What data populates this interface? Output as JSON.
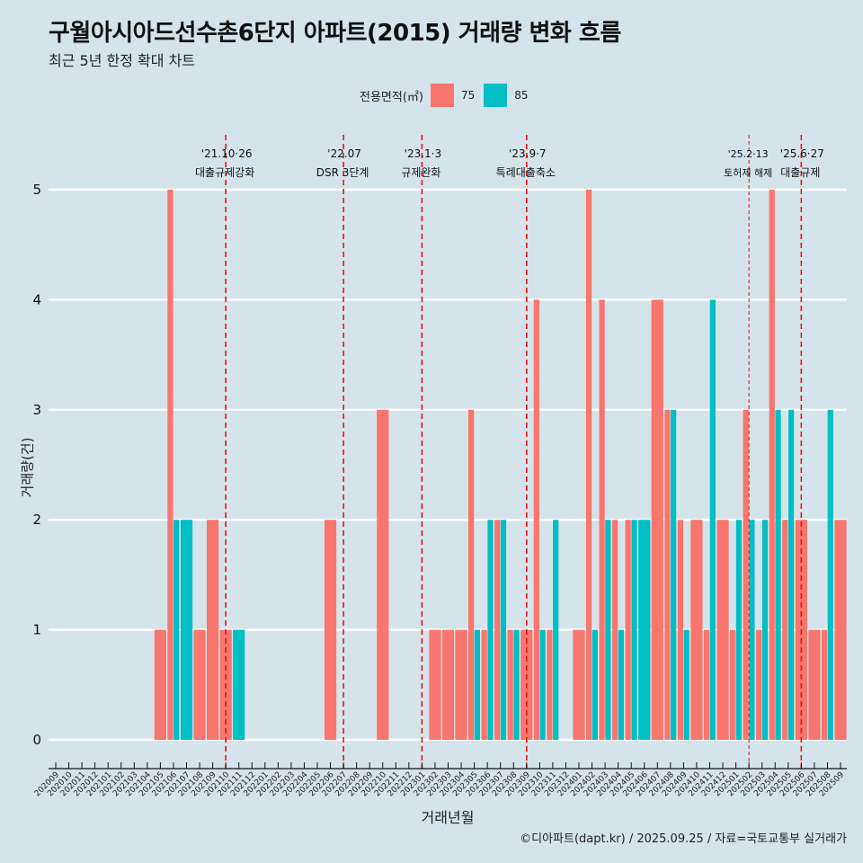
{
  "header": {
    "title": "구월아시아드선수촌6단지 아파트(2015) 거래량 변화 흐름",
    "subtitle": "최근 5년 한정 확대 차트"
  },
  "legend": {
    "title": "전용면적(㎡)",
    "items": [
      {
        "label": "75",
        "color": "#f8766d"
      },
      {
        "label": "85",
        "color": "#00bfc4"
      }
    ]
  },
  "caption": "©디아파트(dapt.kr) / 2025.09.25 / 자료=국토교통부 실거래가",
  "chart_data": {
    "type": "bar",
    "title": "구월아시아드선수촌6단지 아파트(2015) 거래량 변화 흐름",
    "subtitle": "최근 5년 한정 확대 차트",
    "xlabel": "거래년월",
    "ylabel": "거래량(건)",
    "ylim": [
      0,
      5
    ],
    "yticks": [
      0,
      1,
      2,
      3,
      4,
      5
    ],
    "grid": true,
    "legend_position": "top",
    "bar_mode": "dodge",
    "categories": [
      "202009",
      "202010",
      "202011",
      "202012",
      "202101",
      "202102",
      "202103",
      "202104",
      "202105",
      "202106",
      "202107",
      "202108",
      "202109",
      "202110",
      "202111",
      "202112",
      "202201",
      "202202",
      "202203",
      "202204",
      "202205",
      "202206",
      "202207",
      "202208",
      "202209",
      "202210",
      "202211",
      "202212",
      "202301",
      "202302",
      "202303",
      "202304",
      "202305",
      "202306",
      "202307",
      "202308",
      "202309",
      "202310",
      "202311",
      "202312",
      "202401",
      "202402",
      "202403",
      "202404",
      "202405",
      "202406",
      "202407",
      "202408",
      "202409",
      "202410",
      "202411",
      "202412",
      "202501",
      "202502",
      "202503",
      "202504",
      "202505",
      "202506",
      "202507",
      "202508",
      "202509"
    ],
    "series": [
      {
        "name": "75",
        "color": "#f8766d",
        "values": {
          "202105": 1,
          "202106": 5,
          "202108": 1,
          "202109": 2,
          "202110": 1,
          "202206": 2,
          "202210": 3,
          "202302": 1,
          "202303": 1,
          "202304": 1,
          "202305": 3,
          "202306": 1,
          "202307": 2,
          "202308": 1,
          "202309": 1,
          "202310": 4,
          "202311": 1,
          "202401": 1,
          "202402": 5,
          "202403": 4,
          "202404": 2,
          "202405": 2,
          "202407": 4,
          "202408": 3,
          "202409": 2,
          "202410": 2,
          "202411": 1,
          "202412": 2,
          "202501": 1,
          "202502": 3,
          "202503": 1,
          "202504": 5,
          "202505": 2,
          "202506": 2,
          "202507": 1,
          "202508": 1,
          "202509": 2
        }
      },
      {
        "name": "85",
        "color": "#00bfc4",
        "values": {
          "202106": 2,
          "202107": 2,
          "202111": 1,
          "202305": 1,
          "202306": 2,
          "202307": 2,
          "202308": 1,
          "202310": 1,
          "202311": 2,
          "202402": 1,
          "202403": 2,
          "202404": 1,
          "202405": 2,
          "202406": 2,
          "202408": 3,
          "202409": 1,
          "202411": 4,
          "202501": 2,
          "202502": 2,
          "202503": 2,
          "202504": 3,
          "202505": 3,
          "202508": 3
        }
      }
    ],
    "events": [
      {
        "date": "'21.10·26",
        "label": "대출규제강화",
        "month": "202110",
        "style": "bold"
      },
      {
        "date": "'22.07",
        "label": "DSR 3단계",
        "month": "202207",
        "style": "bold"
      },
      {
        "date": "'23.1·3",
        "label": "규제완화",
        "month": "202301",
        "style": "bold"
      },
      {
        "date": "'23.9·7",
        "label": "특례대출축소",
        "month": "202309",
        "style": "bold"
      },
      {
        "date": "'25.2·13",
        "label": "토허제 해제",
        "month": "202502",
        "style": "thin"
      },
      {
        "date": "'25.6·27",
        "label": "대출규제",
        "month": "202506",
        "style": "bold"
      }
    ],
    "event_line_color": "#e8141a"
  }
}
